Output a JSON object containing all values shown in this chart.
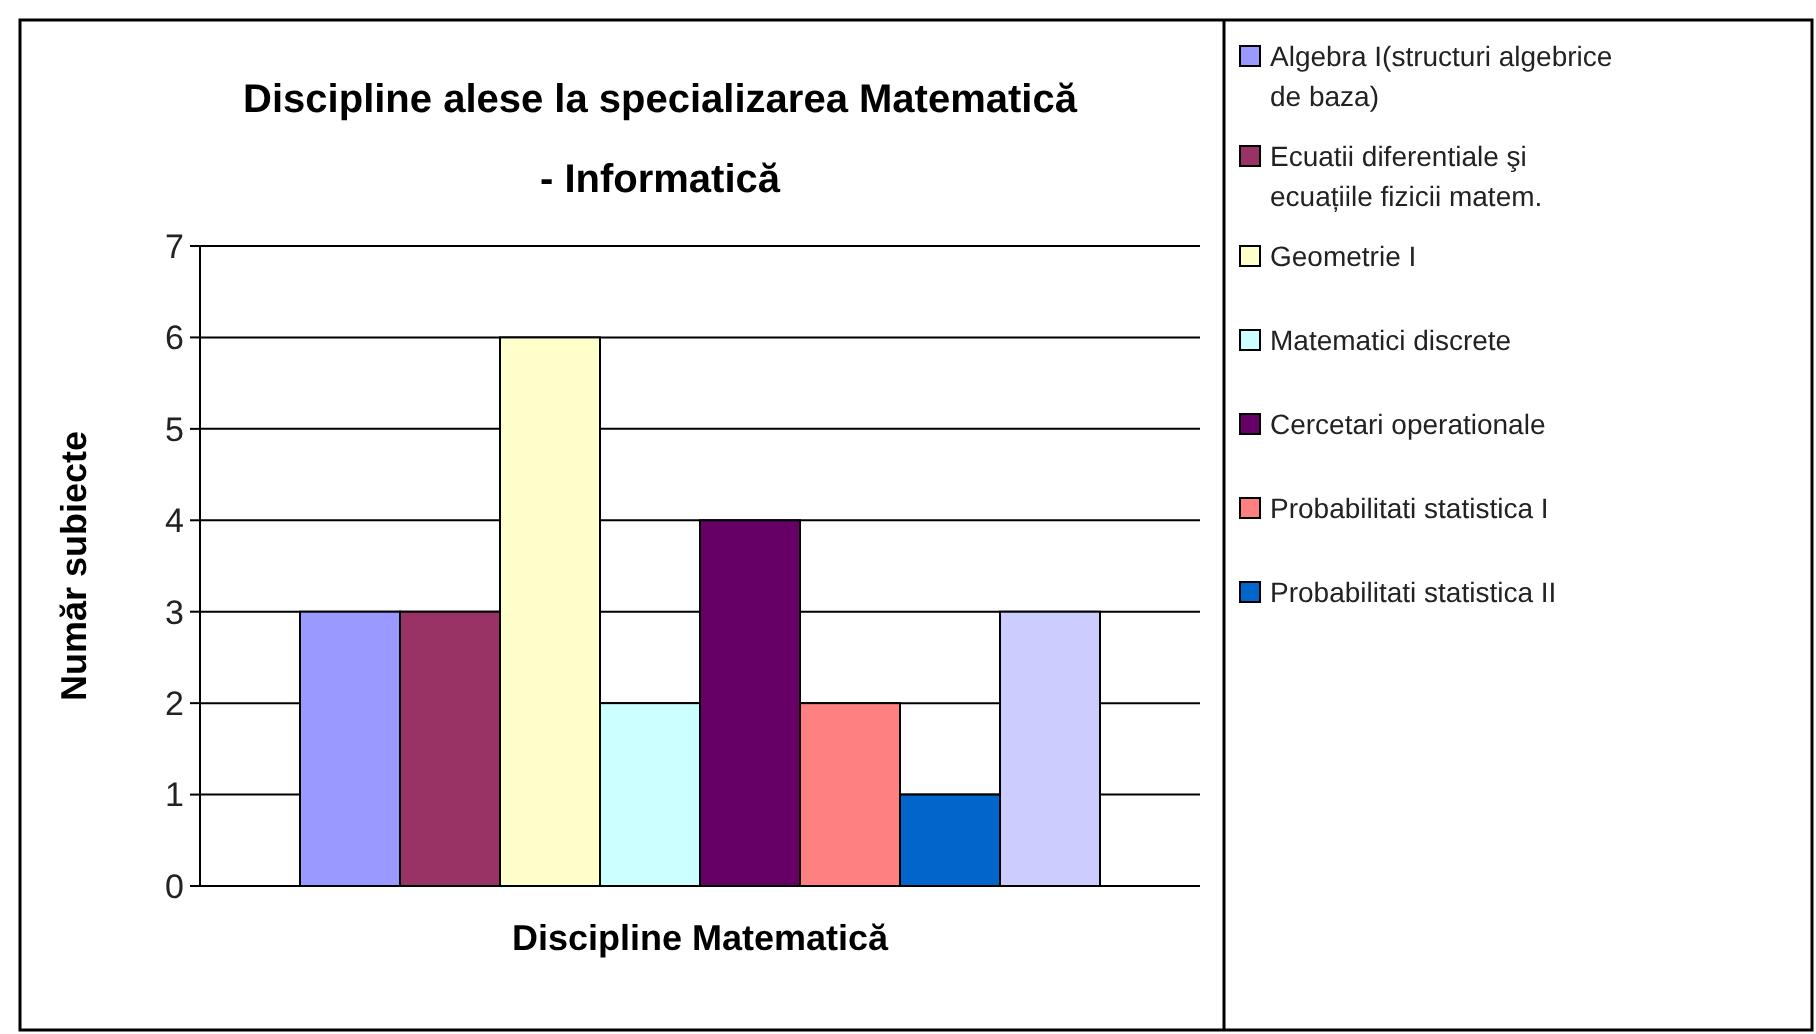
{
  "chart_data": {
    "type": "bar",
    "title": "Discipline alese la specializarea Matematică - Informatică",
    "xlabel": "Discipline Matematică",
    "ylabel": "Număr subiecte",
    "categories": [
      null
    ],
    "series": [
      {
        "name": "Algebra I(structuri algebrice de baza)",
        "color": "#9999ff",
        "values": [
          3
        ]
      },
      {
        "name": "Ecuatii diferentiale şi ecuațiile fizicii matem.",
        "color": "#993366",
        "values": [
          3
        ]
      },
      {
        "name": "Geometrie I",
        "color": "#ffffcc",
        "values": [
          6
        ]
      },
      {
        "name": "Matematici discrete",
        "color": "#ccffff",
        "values": [
          2
        ]
      },
      {
        "name": "Cercetari operationale",
        "color": "#660066",
        "values": [
          4
        ]
      },
      {
        "name": "Probabilitati statistica I",
        "color": "#ff8080",
        "values": [
          2
        ]
      },
      {
        "name": "Probabilitati statistica II",
        "color": "#0066cc",
        "values": [
          1
        ]
      },
      {
        "color": "#ccccff",
        "values": [
          3
        ]
      }
    ],
    "ylim": [
      0,
      7
    ],
    "yticks": [
      0,
      1,
      2,
      3,
      4,
      5,
      6,
      7
    ],
    "grid": "y",
    "legend": "right"
  }
}
